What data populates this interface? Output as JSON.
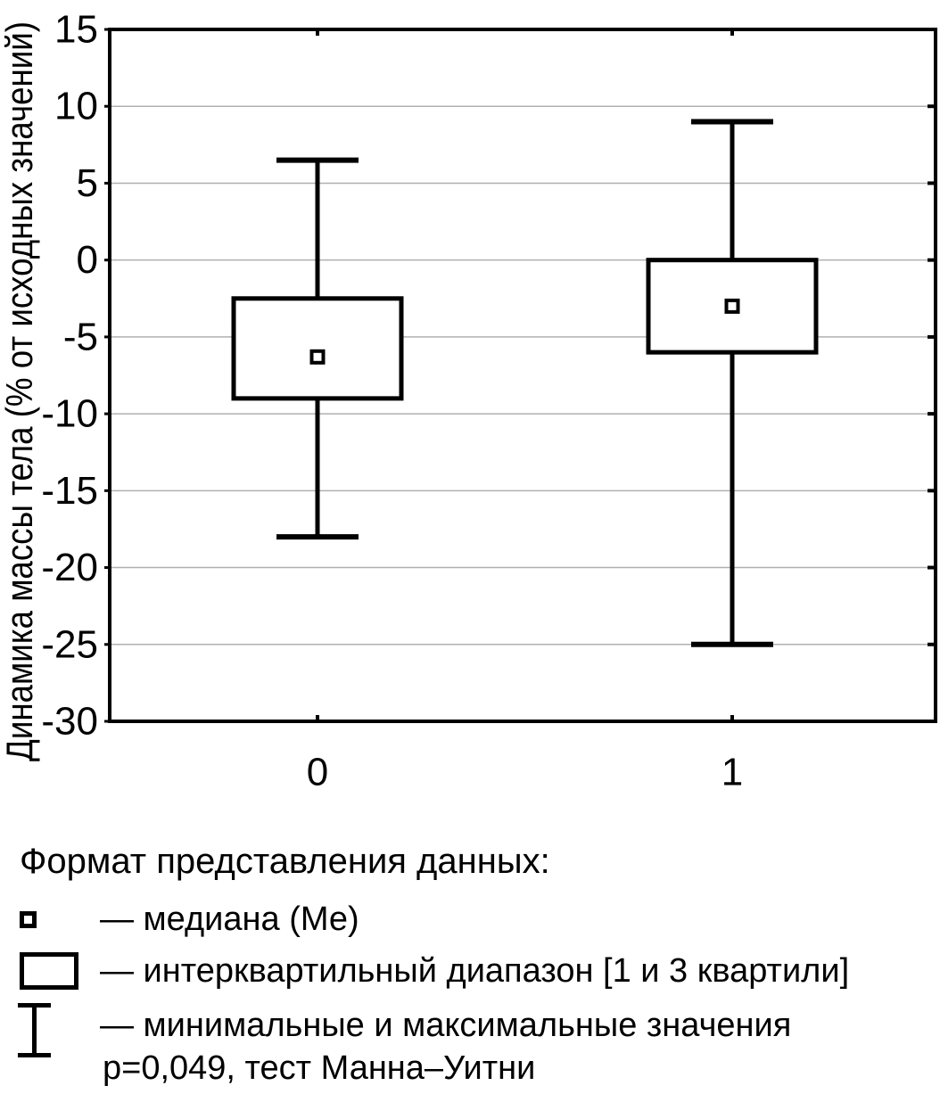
{
  "figure": {
    "background": "#ffffff",
    "ink_color": "#000000",
    "gridline_color": "#b0b0b0"
  },
  "chart_data": {
    "type": "boxplot",
    "title": "",
    "xlabel": "",
    "ylabel": "Динамика массы тела (% от исходных значений)",
    "ylim": [
      -30,
      15
    ],
    "yticks": [
      15,
      10,
      5,
      0,
      -5,
      -10,
      -15,
      -20,
      -25,
      -30
    ],
    "grid": true,
    "categories": [
      "0",
      "1"
    ],
    "series": [
      {
        "name": "0",
        "min": -18,
        "q1": -9,
        "median": -6.3,
        "q3": -2.5,
        "max": 6.5
      },
      {
        "name": "1",
        "min": -25,
        "q1": -6,
        "median": -3,
        "q3": 0,
        "max": 9
      }
    ]
  },
  "legend": {
    "header": "Формат представления данных:",
    "items": [
      {
        "symbol": "median-square-marker",
        "label": "— медиана (Ме)"
      },
      {
        "symbol": "interquartile-range-box",
        "label": "— интерквартильный диапазон [1 и 3 квартили]"
      },
      {
        "symbol": "min-max-whisker",
        "label": "— минимальные и максимальные значения"
      }
    ],
    "note": "p=0,049, тест Манна–Уитни"
  }
}
